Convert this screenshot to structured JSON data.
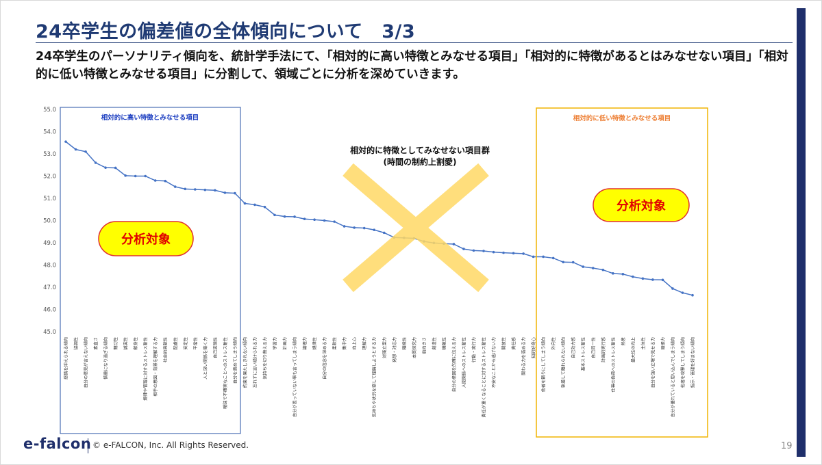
{
  "slide": {
    "title": "24卒学生の偏差値の全体傾向について　3/3",
    "subtitle": "24卒学生のパーソナリティ傾向を、統計学手法にて、「相対的に高い特徴とみなせる項目」「相対的に特徴があるとはみなせない項目」「相対的に低い特徴とみなせる項目」に分割して、領域ごとに分析を深めていきます。",
    "footer_logo": "e-falcon",
    "footer_copyright": "© e-FALCON, Inc. All Rights Reserved.",
    "page_number": "19"
  },
  "annotations": {
    "high_box_label": "相対的に高い特徴とみなせる項目",
    "low_box_label": "相対的に低い特徴とみなせる項目",
    "middle_label_line1": "相対的に特徴としてみなせない項目群",
    "middle_label_line2": "(時間の制約上割愛)",
    "analysis_left": "分析対象",
    "analysis_right": "分析対象"
  },
  "colors": {
    "title": "#1f3a73",
    "line": "#4472c4",
    "high_box": "#4a6fb5",
    "low_box": "#f0b400",
    "high_label": "#1a3cc0",
    "low_label": "#ed7d31",
    "cross": "#ffd966",
    "badge_fill": "#ffff00",
    "badge_border": "#e03030",
    "badge_text": "#e00000",
    "right_bar": "#1f2f6b"
  },
  "chart_data": {
    "type": "line",
    "ylim": [
      45.0,
      55.0
    ],
    "yticks": [
      "45.0",
      "46.0",
      "47.0",
      "48.0",
      "49.0",
      "50.0",
      "51.0",
      "52.0",
      "53.0",
      "54.0",
      "55.0"
    ],
    "grid": false,
    "categories": [
      "感情を抑えられる傾向",
      "協調性",
      "自分の意見が言えない傾向",
      "素直さ",
      "慎重になり過ぎる傾向",
      "親切性",
      "誠実性",
      "献身性",
      "規律や管理に対するストレス耐性",
      "相手の意図・背景を理解する力",
      "社会的貢献性",
      "配慮性",
      "安定性",
      "平常性",
      "人と深い関係を築く力",
      "自己実現性",
      "曖昧で不確実なことへのストレス耐性",
      "自分を責めてしまう傾向",
      "約束を果たしきれない傾向",
      "忘れずに言い続けられる力",
      "気持ちを切り替える力",
      "学習力",
      "計画力",
      "自分が思っていない事も言ってしまう傾向",
      "論理力",
      "規律性",
      "自分の信念を深める力",
      "柔軟性",
      "集中力",
      "向上心",
      "理解力",
      "気持ちや状況を察して理解しようとする力",
      "対策立案力",
      "発想・対応力",
      "積極性",
      "本質探究力",
      "前向きさ",
      "創造性",
      "機敏性",
      "自分の意図を的確に伝える力",
      "人間関係へのストレス耐性",
      "行動・実行力",
      "責任が重くなることに対するストレス耐性",
      "不安なことから逃げない力",
      "開放性",
      "責任感",
      "関わる力を高める力",
      "知的好奇心",
      "他者を頼りにしてしまう傾向",
      "外向性",
      "執着して離れられない傾向",
      "自己効力感",
      "基本ストレス耐性",
      "自己同一性",
      "計画的実行感",
      "仕事の負荷へのストレス耐性",
      "熱意",
      "最大性の向上",
      "主体性",
      "自分を強い立場で見せる力",
      "頑張力",
      "自分が優れていると思い込んでしまう傾向",
      "他者を攻撃してしまう傾向",
      "指示・管理を好まない傾向"
    ],
    "values": [
      53.55,
      53.2,
      53.1,
      52.6,
      52.38,
      52.37,
      52.02,
      52.0,
      52.0,
      51.8,
      51.78,
      51.52,
      51.42,
      51.4,
      51.38,
      51.36,
      51.25,
      51.23,
      50.77,
      50.71,
      50.61,
      50.25,
      50.18,
      50.17,
      50.07,
      50.04,
      50.0,
      49.95,
      49.74,
      49.68,
      49.66,
      49.58,
      49.45,
      49.24,
      49.22,
      49.2,
      49.06,
      48.99,
      48.96,
      48.94,
      48.72,
      48.65,
      48.63,
      48.58,
      48.55,
      48.53,
      48.51,
      48.37,
      48.37,
      48.31,
      48.13,
      48.12,
      47.92,
      47.86,
      47.78,
      47.62,
      47.59,
      47.47,
      47.39,
      47.34,
      47.33,
      46.94,
      46.75,
      46.64
    ],
    "high_region_last_index": 17,
    "low_region_first_index": 48
  }
}
